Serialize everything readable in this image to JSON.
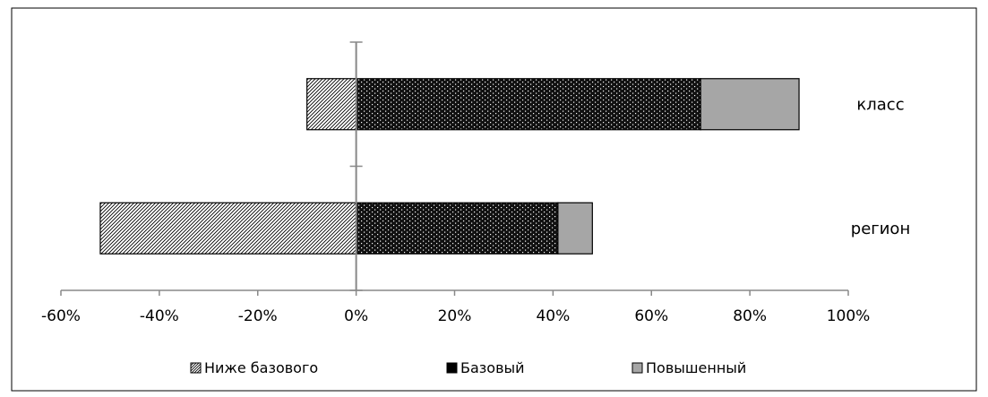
{
  "chart_data": {
    "type": "bar",
    "orientation": "horizontal",
    "stacked": true,
    "categories": [
      "класс",
      "регион"
    ],
    "series": [
      {
        "name": "Ниже базового",
        "values": [
          -10,
          -52
        ],
        "color": "#ffffff",
        "pattern": "diagonal-hatch"
      },
      {
        "name": "Базовый",
        "values": [
          70,
          41
        ],
        "color": "#111111",
        "pattern": "dotted"
      },
      {
        "name": "Повышенный",
        "values": [
          20,
          7
        ],
        "color": "#a6a6a6",
        "pattern": "solid"
      }
    ],
    "xlim": [
      -60,
      100
    ],
    "xticks": [
      "-60%",
      "-40%",
      "-20%",
      "0%",
      "20%",
      "40%",
      "60%",
      "80%",
      "100%"
    ],
    "title": "",
    "xlabel": "",
    "ylabel": "",
    "grid": false,
    "legend_position": "bottom"
  }
}
